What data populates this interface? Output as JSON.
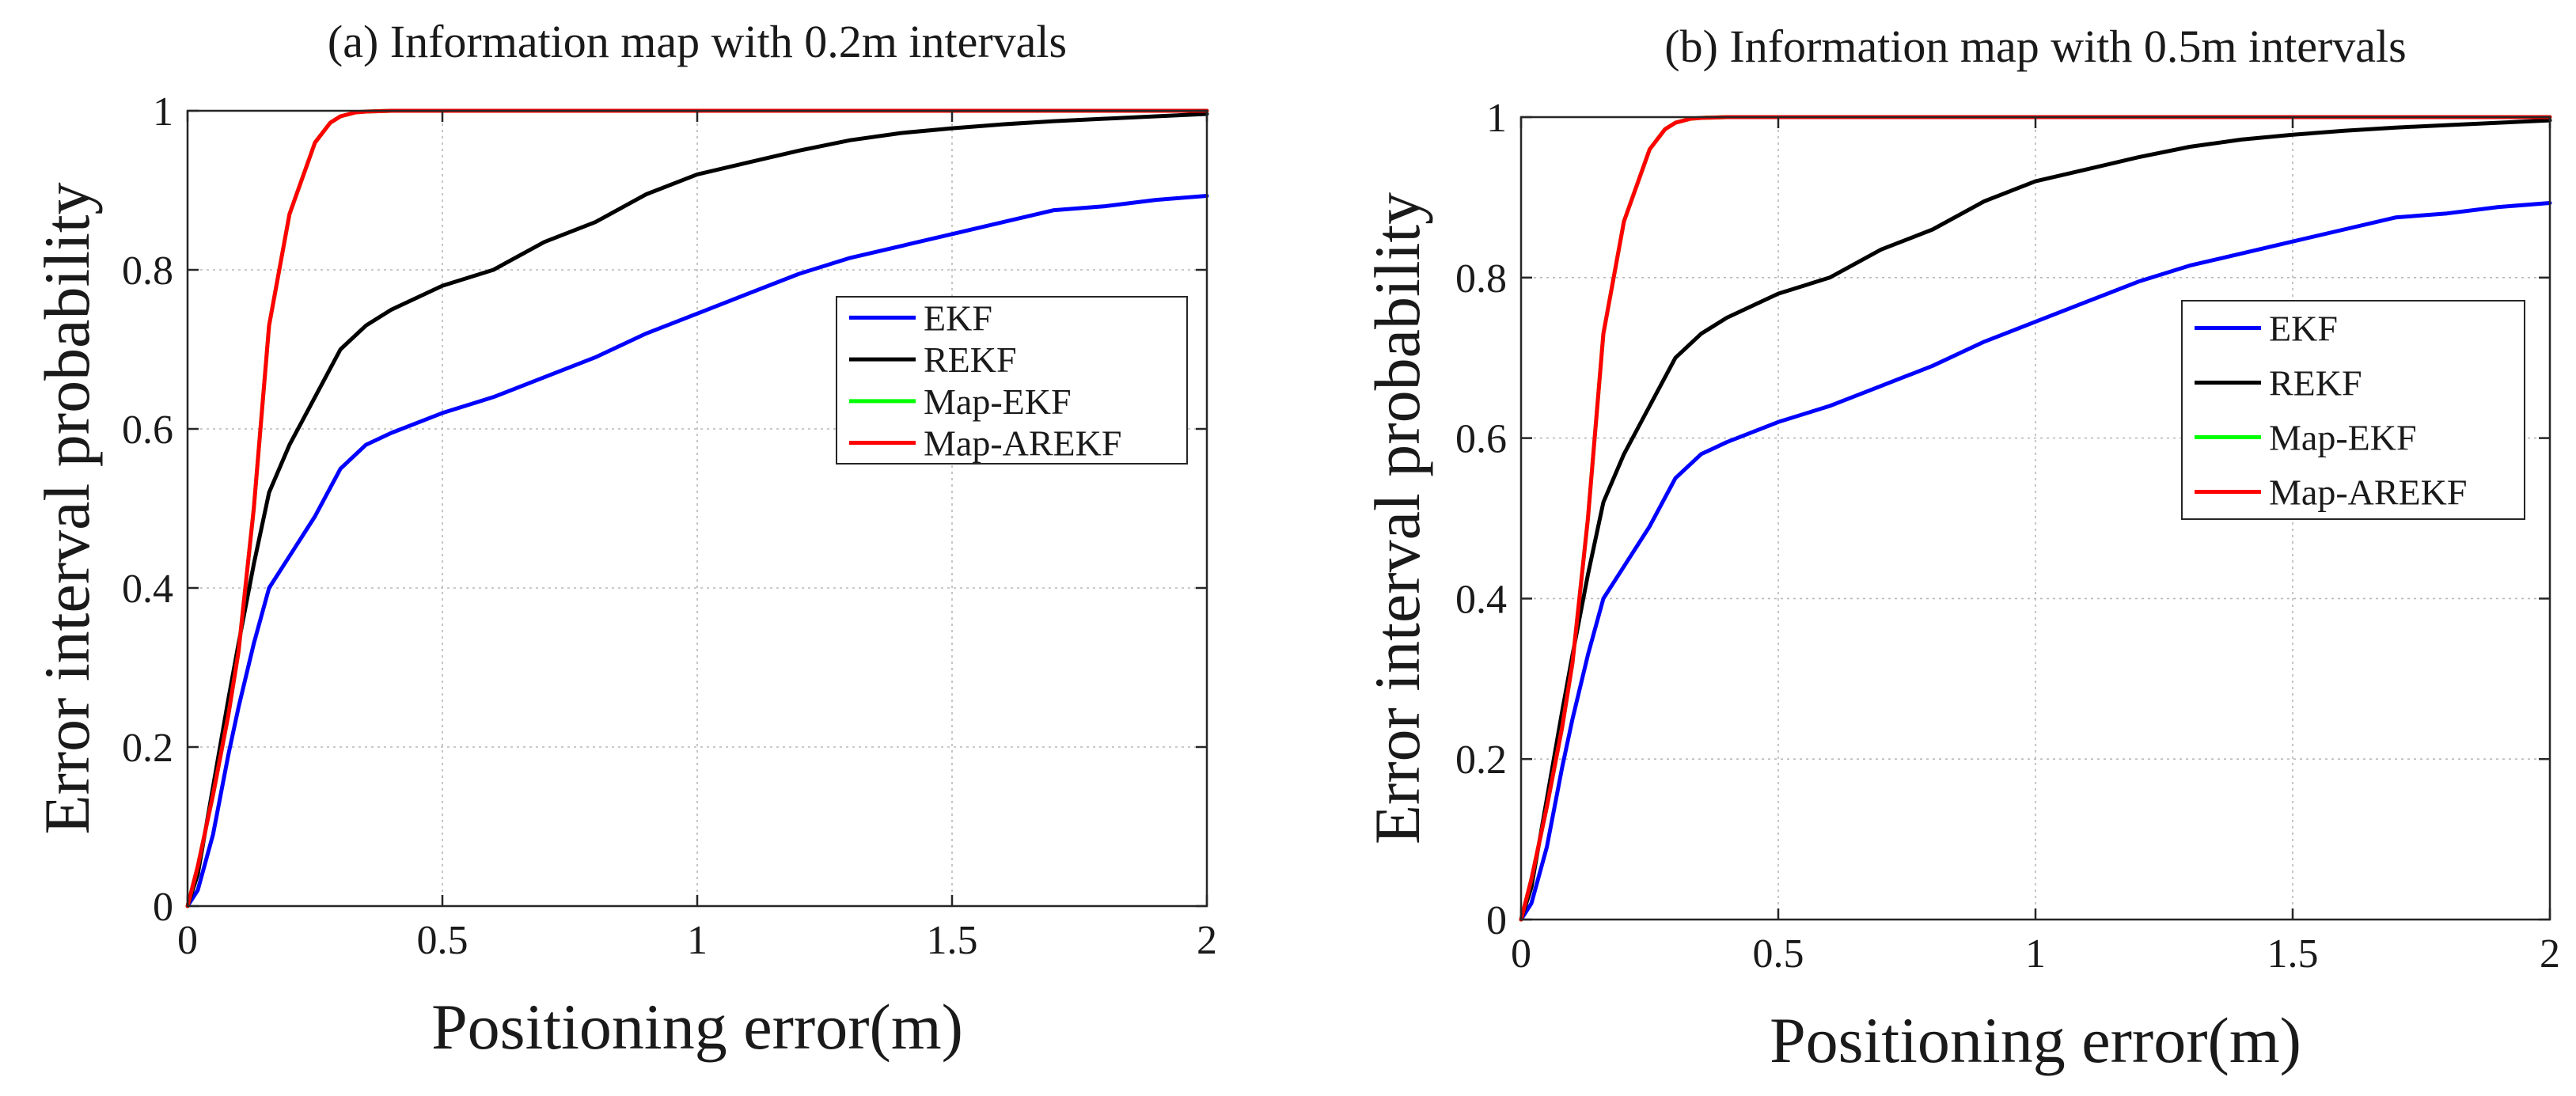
{
  "chart_data": [
    {
      "type": "line",
      "title": "(a) Information map with 0.2m intervals",
      "xlabel": "Positioning error(m)",
      "ylabel": "Error interval probability",
      "xlim": [
        0,
        2
      ],
      "ylim": [
        0,
        1
      ],
      "xticks": [
        "0",
        "0.5",
        "1",
        "1.5",
        "2"
      ],
      "yticks": [
        "0",
        "0.2",
        "0.4",
        "0.6",
        "0.8",
        "1"
      ],
      "grid": true,
      "legend_position": "right",
      "series": [
        {
          "name": "EKF",
          "color": "#0000ff",
          "x": [
            0,
            0.02,
            0.05,
            0.08,
            0.1,
            0.13,
            0.16,
            0.2,
            0.25,
            0.3,
            0.35,
            0.4,
            0.5,
            0.6,
            0.7,
            0.8,
            0.9,
            1.0,
            1.1,
            1.2,
            1.3,
            1.4,
            1.5,
            1.6,
            1.7,
            1.8,
            1.9,
            2.0
          ],
          "y": [
            0,
            0.02,
            0.09,
            0.19,
            0.25,
            0.33,
            0.4,
            0.44,
            0.49,
            0.55,
            0.58,
            0.595,
            0.62,
            0.64,
            0.665,
            0.69,
            0.72,
            0.745,
            0.77,
            0.795,
            0.815,
            0.83,
            0.845,
            0.86,
            0.875,
            0.88,
            0.888,
            0.893
          ]
        },
        {
          "name": "REKF",
          "color": "#000000",
          "x": [
            0,
            0.02,
            0.05,
            0.08,
            0.1,
            0.13,
            0.16,
            0.2,
            0.25,
            0.3,
            0.35,
            0.4,
            0.5,
            0.6,
            0.7,
            0.8,
            0.9,
            1.0,
            1.1,
            1.2,
            1.3,
            1.4,
            1.5,
            1.6,
            1.7,
            1.8,
            1.9,
            2.0
          ],
          "y": [
            0,
            0.04,
            0.15,
            0.26,
            0.33,
            0.43,
            0.52,
            0.58,
            0.64,
            0.7,
            0.73,
            0.75,
            0.78,
            0.8,
            0.835,
            0.86,
            0.895,
            0.92,
            0.935,
            0.95,
            0.963,
            0.972,
            0.978,
            0.983,
            0.987,
            0.99,
            0.993,
            0.996
          ]
        },
        {
          "name": "Map-EKF",
          "color": "#00ff00",
          "x": [
            0,
            0.02,
            0.05,
            0.08,
            0.1,
            0.13,
            0.16,
            0.2,
            0.25,
            0.28,
            0.3,
            0.33,
            0.35,
            0.4,
            0.5,
            1.0,
            1.5,
            2.0
          ],
          "y": [
            0,
            0.05,
            0.14,
            0.24,
            0.32,
            0.5,
            0.73,
            0.87,
            0.96,
            0.985,
            0.993,
            0.998,
            0.999,
            1.0,
            1.0,
            1.0,
            1.0,
            1.0
          ]
        },
        {
          "name": "Map-AREKF",
          "color": "#ff0000",
          "x": [
            0,
            0.02,
            0.05,
            0.08,
            0.1,
            0.13,
            0.16,
            0.2,
            0.25,
            0.28,
            0.3,
            0.33,
            0.35,
            0.4,
            0.5,
            1.0,
            1.5,
            2.0
          ],
          "y": [
            0,
            0.05,
            0.14,
            0.24,
            0.32,
            0.5,
            0.73,
            0.87,
            0.96,
            0.985,
            0.993,
            0.998,
            0.999,
            1.0,
            1.0,
            1.0,
            1.0,
            1.0
          ]
        }
      ]
    },
    {
      "type": "line",
      "title": "(b) Information map with 0.5m intervals",
      "xlabel": "Positioning error(m)",
      "ylabel": "Error interval probability",
      "xlim": [
        0,
        2
      ],
      "ylim": [
        0,
        1
      ],
      "xticks": [
        "0",
        "0.5",
        "1",
        "1.5",
        "2"
      ],
      "yticks": [
        "0",
        "0.2",
        "0.4",
        "0.6",
        "0.8",
        "1"
      ],
      "grid": true,
      "legend_position": "right",
      "series": [
        {
          "name": "EKF",
          "color": "#0000ff",
          "x": [
            0,
            0.02,
            0.05,
            0.08,
            0.1,
            0.13,
            0.16,
            0.2,
            0.25,
            0.3,
            0.35,
            0.4,
            0.5,
            0.6,
            0.7,
            0.8,
            0.9,
            1.0,
            1.1,
            1.2,
            1.3,
            1.4,
            1.5,
            1.6,
            1.7,
            1.8,
            1.9,
            2.0
          ],
          "y": [
            0,
            0.02,
            0.09,
            0.19,
            0.25,
            0.33,
            0.4,
            0.44,
            0.49,
            0.55,
            0.58,
            0.595,
            0.62,
            0.64,
            0.665,
            0.69,
            0.72,
            0.745,
            0.77,
            0.795,
            0.815,
            0.83,
            0.845,
            0.86,
            0.875,
            0.88,
            0.888,
            0.893
          ]
        },
        {
          "name": "REKF",
          "color": "#000000",
          "x": [
            0,
            0.02,
            0.05,
            0.08,
            0.1,
            0.13,
            0.16,
            0.2,
            0.25,
            0.3,
            0.35,
            0.4,
            0.5,
            0.6,
            0.7,
            0.8,
            0.9,
            1.0,
            1.1,
            1.2,
            1.3,
            1.4,
            1.5,
            1.6,
            1.7,
            1.8,
            1.9,
            2.0
          ],
          "y": [
            0,
            0.04,
            0.15,
            0.26,
            0.33,
            0.43,
            0.52,
            0.58,
            0.64,
            0.7,
            0.73,
            0.75,
            0.78,
            0.8,
            0.835,
            0.86,
            0.895,
            0.92,
            0.935,
            0.95,
            0.963,
            0.972,
            0.978,
            0.983,
            0.987,
            0.99,
            0.993,
            0.996
          ]
        },
        {
          "name": "Map-EKF",
          "color": "#00ff00",
          "x": [
            0,
            0.02,
            0.05,
            0.08,
            0.1,
            0.13,
            0.16,
            0.2,
            0.25,
            0.28,
            0.3,
            0.33,
            0.35,
            0.4,
            0.5,
            1.0,
            1.5,
            2.0
          ],
          "y": [
            0,
            0.05,
            0.14,
            0.24,
            0.32,
            0.5,
            0.73,
            0.87,
            0.96,
            0.985,
            0.993,
            0.998,
            0.999,
            1.0,
            1.0,
            1.0,
            1.0,
            1.0
          ]
        },
        {
          "name": "Map-AREKF",
          "color": "#ff0000",
          "x": [
            0,
            0.02,
            0.05,
            0.08,
            0.1,
            0.13,
            0.16,
            0.2,
            0.25,
            0.28,
            0.3,
            0.33,
            0.35,
            0.4,
            0.5,
            1.0,
            1.5,
            2.0
          ],
          "y": [
            0,
            0.05,
            0.14,
            0.24,
            0.32,
            0.5,
            0.73,
            0.87,
            0.96,
            0.985,
            0.993,
            0.998,
            0.999,
            1.0,
            1.0,
            1.0,
            1.0,
            1.0
          ]
        }
      ]
    }
  ]
}
